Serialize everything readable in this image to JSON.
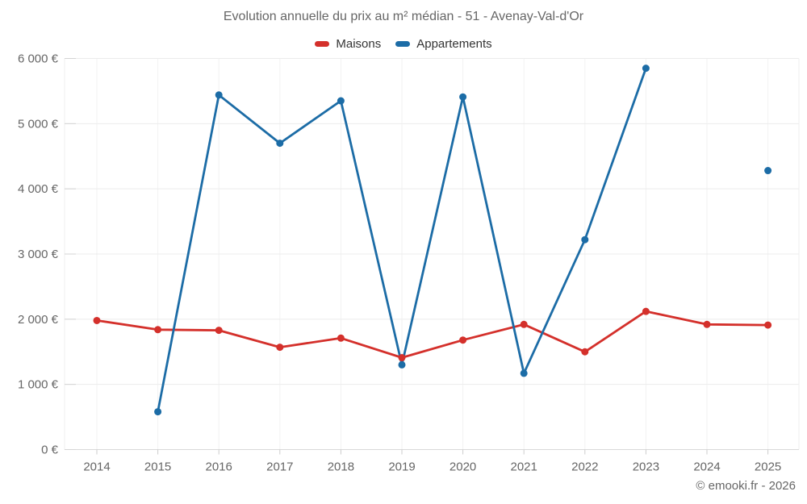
{
  "header": {
    "title": "Evolution annuelle du prix au m² médian - 51 - Avenay-Val-d'Or"
  },
  "footer": {
    "copyright": "© emooki.fr - 2026"
  },
  "chart_data": {
    "type": "line",
    "title": "Evolution annuelle du prix au m² médian - 51 - Avenay-Val-d'Or",
    "categories": [
      "2014",
      "2015",
      "2016",
      "2017",
      "2018",
      "2019",
      "2020",
      "2021",
      "2022",
      "2023",
      "2024",
      "2025"
    ],
    "series": [
      {
        "name": "Maisons",
        "color": "#d4302b",
        "values": [
          1980,
          1840,
          1830,
          1570,
          1710,
          1410,
          1680,
          1920,
          1500,
          2120,
          1920,
          1910
        ]
      },
      {
        "name": "Appartements",
        "color": "#1c6ca6",
        "values": [
          null,
          580,
          5440,
          4700,
          5350,
          1300,
          5410,
          1170,
          3220,
          5850,
          null,
          4280
        ]
      }
    ],
    "xlabel": "",
    "ylabel": "",
    "y_axis": {
      "min": 0,
      "max": 6000,
      "tick_step": 1000,
      "tick_labels": [
        "0 €",
        "1 000 €",
        "2 000 €",
        "3 000 €",
        "4 000 €",
        "5 000 €",
        "6 000 €"
      ]
    },
    "legend_position": "top",
    "grid": true,
    "marker_radius": 4.5,
    "line_width": 2.8
  }
}
